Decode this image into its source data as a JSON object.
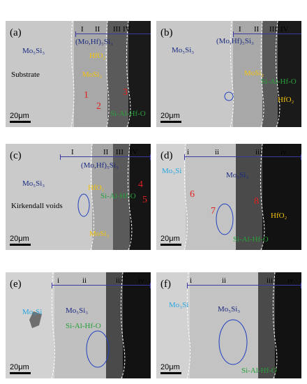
{
  "panels": [
    {
      "label": "(a)",
      "zones": [
        "I",
        "II",
        "III",
        "IV"
      ],
      "phases": [
        "(Mo,Hf)₅Si₃",
        "Mo₅Si₃",
        "HfO₂",
        "MoSi₂",
        "Si-Al-Hf-O"
      ],
      "region": "Substrate",
      "points": [
        "1",
        "2",
        "3"
      ],
      "scale": "20μm"
    },
    {
      "label": "(b)",
      "zones": [
        "I",
        "II",
        "III",
        "IV"
      ],
      "phases": [
        "(Mo,Hf)₅Si₃",
        "Mo₅Si₃",
        "MoSi₂",
        "Si-Al-Hf-O",
        "HfO₂"
      ],
      "scale": "20μm"
    },
    {
      "label": "(c)",
      "zones": [
        "I",
        "II",
        "III",
        "IV"
      ],
      "phases": [
        "(Mo,Hf)₅Si₃",
        "Mo₅Si₃",
        "HfO₂",
        "Si-Al-Hf-O",
        "MoSi₂"
      ],
      "region": "Kirkendall voids",
      "points": [
        "4",
        "5"
      ],
      "scale": "20μm"
    },
    {
      "label": "(d)",
      "zones": [
        "i",
        "ii",
        "iii",
        "iv"
      ],
      "phases": [
        "Mo₃Si",
        "Mo₅Si₃",
        "HfO₂",
        "Si-Al-Hf-O"
      ],
      "points": [
        "6",
        "7",
        "8"
      ],
      "scale": "20μm"
    },
    {
      "label": "(e)",
      "zones": [
        "i",
        "ii",
        "iii",
        "iv"
      ],
      "phases": [
        "Mo₃Si",
        "Mo₅Si₃",
        "Si-Al-Hf-O"
      ],
      "scale": "20μm"
    },
    {
      "label": "(f)",
      "zones": [
        "i",
        "ii",
        "iii",
        "iv"
      ],
      "phases": [
        "Mo₃Si",
        "Mo₅Si₃",
        "Si-Al-Hf-O"
      ],
      "scale": "20μm"
    }
  ]
}
